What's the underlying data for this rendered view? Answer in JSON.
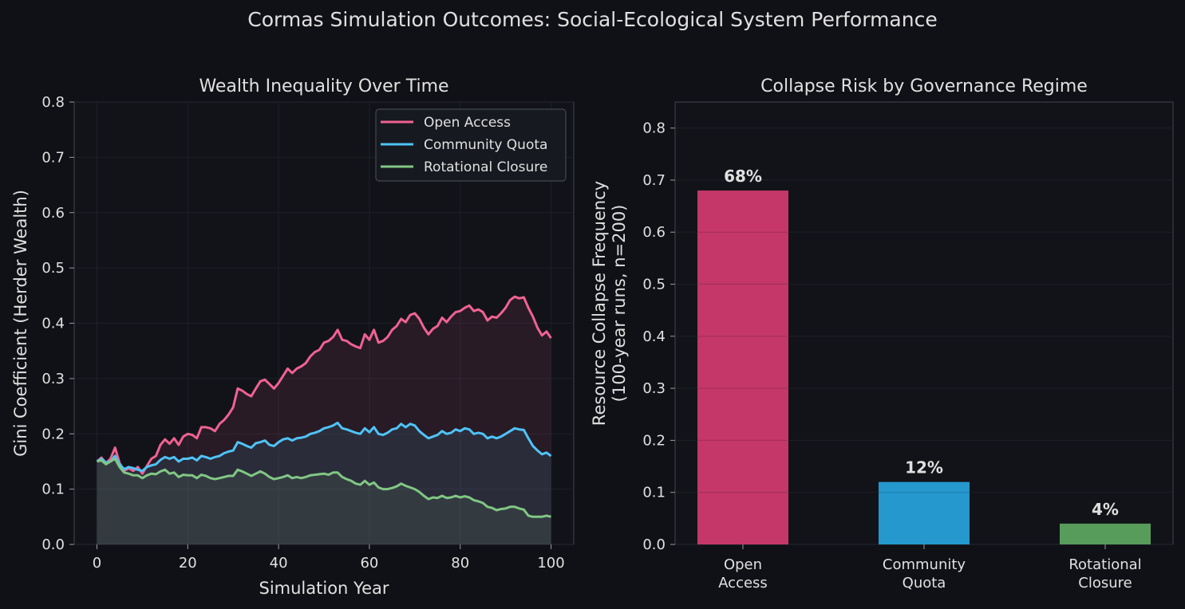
{
  "suptitle": "Cormas Simulation Outcomes: Social-Ecological System Performance",
  "chart_data": [
    {
      "type": "line",
      "title": "Wealth Inequality Over Time",
      "xlabel": "Simulation Year",
      "ylabel": "Gini Coefficient (Herder Wealth)",
      "xlim": [
        -5,
        105
      ],
      "ylim": [
        0,
        0.8
      ],
      "xticks": [
        "0",
        "20",
        "40",
        "60",
        "80",
        "100"
      ],
      "yticks": [
        "0.0",
        "0.1",
        "0.2",
        "0.3",
        "0.4",
        "0.5",
        "0.6",
        "0.7",
        "0.8"
      ],
      "grid": true,
      "legend": "top-right",
      "filled_under_lines": true,
      "x": [
        0,
        1,
        2,
        3,
        4,
        5,
        6,
        7,
        8,
        9,
        10,
        11,
        12,
        13,
        14,
        15,
        16,
        17,
        18,
        19,
        20,
        21,
        22,
        23,
        24,
        25,
        26,
        27,
        28,
        29,
        30,
        31,
        32,
        33,
        34,
        35,
        36,
        37,
        38,
        39,
        40,
        41,
        42,
        43,
        44,
        45,
        46,
        47,
        48,
        49,
        50,
        51,
        52,
        53,
        54,
        55,
        56,
        57,
        58,
        59,
        60,
        61,
        62,
        63,
        64,
        65,
        66,
        67,
        68,
        69,
        70,
        71,
        72,
        73,
        74,
        75,
        76,
        77,
        78,
        79,
        80,
        81,
        82,
        83,
        84,
        85,
        86,
        87,
        88,
        89,
        90,
        91,
        92,
        93,
        94,
        95,
        96,
        97,
        98,
        99,
        100
      ],
      "series": [
        {
          "name": "Open Access",
          "color": "#f06292",
          "values": [
            0.15,
            0.157,
            0.147,
            0.155,
            0.175,
            0.147,
            0.133,
            0.138,
            0.133,
            0.14,
            0.128,
            0.142,
            0.155,
            0.16,
            0.18,
            0.19,
            0.182,
            0.192,
            0.18,
            0.195,
            0.2,
            0.198,
            0.192,
            0.212,
            0.212,
            0.21,
            0.205,
            0.218,
            0.225,
            0.235,
            0.248,
            0.282,
            0.278,
            0.272,
            0.268,
            0.282,
            0.295,
            0.298,
            0.29,
            0.282,
            0.292,
            0.305,
            0.318,
            0.31,
            0.318,
            0.322,
            0.328,
            0.34,
            0.348,
            0.352,
            0.365,
            0.368,
            0.375,
            0.388,
            0.37,
            0.368,
            0.362,
            0.358,
            0.355,
            0.38,
            0.37,
            0.388,
            0.365,
            0.368,
            0.375,
            0.388,
            0.395,
            0.408,
            0.402,
            0.415,
            0.418,
            0.408,
            0.392,
            0.38,
            0.39,
            0.395,
            0.41,
            0.402,
            0.412,
            0.42,
            0.422,
            0.428,
            0.432,
            0.422,
            0.425,
            0.42,
            0.405,
            0.412,
            0.41,
            0.418,
            0.428,
            0.442,
            0.448,
            0.445,
            0.447,
            0.428,
            0.412,
            0.392,
            0.378,
            0.385,
            0.373
          ]
        },
        {
          "name": "Community Quota",
          "color": "#4fc3f7",
          "values": [
            0.15,
            0.155,
            0.148,
            0.15,
            0.16,
            0.145,
            0.136,
            0.14,
            0.138,
            0.135,
            0.133,
            0.14,
            0.143,
            0.145,
            0.153,
            0.158,
            0.155,
            0.158,
            0.15,
            0.155,
            0.155,
            0.157,
            0.152,
            0.16,
            0.158,
            0.155,
            0.158,
            0.16,
            0.165,
            0.168,
            0.17,
            0.185,
            0.182,
            0.178,
            0.175,
            0.183,
            0.185,
            0.188,
            0.18,
            0.178,
            0.185,
            0.19,
            0.192,
            0.188,
            0.192,
            0.193,
            0.195,
            0.2,
            0.202,
            0.205,
            0.21,
            0.212,
            0.215,
            0.22,
            0.21,
            0.208,
            0.205,
            0.202,
            0.2,
            0.21,
            0.203,
            0.212,
            0.2,
            0.198,
            0.202,
            0.208,
            0.21,
            0.218,
            0.212,
            0.218,
            0.215,
            0.205,
            0.198,
            0.192,
            0.195,
            0.198,
            0.205,
            0.2,
            0.202,
            0.208,
            0.205,
            0.21,
            0.208,
            0.2,
            0.202,
            0.2,
            0.192,
            0.195,
            0.192,
            0.195,
            0.2,
            0.205,
            0.21,
            0.208,
            0.207,
            0.192,
            0.178,
            0.17,
            0.163,
            0.166,
            0.16
          ]
        },
        {
          "name": "Rotational Closure",
          "color": "#81c784",
          "values": [
            0.15,
            0.152,
            0.145,
            0.15,
            0.155,
            0.14,
            0.13,
            0.128,
            0.125,
            0.125,
            0.12,
            0.125,
            0.128,
            0.127,
            0.132,
            0.135,
            0.128,
            0.13,
            0.122,
            0.126,
            0.125,
            0.125,
            0.12,
            0.126,
            0.124,
            0.12,
            0.118,
            0.12,
            0.122,
            0.124,
            0.124,
            0.135,
            0.132,
            0.128,
            0.124,
            0.128,
            0.132,
            0.128,
            0.122,
            0.118,
            0.12,
            0.122,
            0.125,
            0.12,
            0.122,
            0.12,
            0.122,
            0.125,
            0.126,
            0.127,
            0.128,
            0.126,
            0.13,
            0.13,
            0.122,
            0.118,
            0.115,
            0.11,
            0.108,
            0.115,
            0.108,
            0.112,
            0.103,
            0.1,
            0.1,
            0.102,
            0.105,
            0.11,
            0.106,
            0.103,
            0.1,
            0.095,
            0.088,
            0.082,
            0.085,
            0.084,
            0.088,
            0.084,
            0.085,
            0.088,
            0.085,
            0.087,
            0.085,
            0.08,
            0.078,
            0.075,
            0.068,
            0.066,
            0.062,
            0.064,
            0.065,
            0.068,
            0.068,
            0.065,
            0.063,
            0.052,
            0.05,
            0.05,
            0.05,
            0.052,
            0.05
          ]
        }
      ]
    },
    {
      "type": "bar",
      "title": "Collapse Risk by Governance Regime",
      "xlabel": "",
      "ylabel_lines": [
        "Resource Collapse Frequency",
        "(100-year runs, n=200)"
      ],
      "ylim": [
        0,
        0.85
      ],
      "yticks": [
        "0.0",
        "0.1",
        "0.2",
        "0.3",
        "0.4",
        "0.5",
        "0.6",
        "0.7",
        "0.8"
      ],
      "grid": true,
      "categories": [
        [
          "Open",
          "Access"
        ],
        [
          "Community",
          "Quota"
        ],
        [
          "Rotational",
          "Closure"
        ]
      ],
      "values": [
        0.68,
        0.12,
        0.04
      ],
      "labels": [
        "68%",
        "12%",
        "4%"
      ],
      "colors": [
        "#ec407a",
        "#29b6f6",
        "#66bb6a"
      ]
    }
  ]
}
